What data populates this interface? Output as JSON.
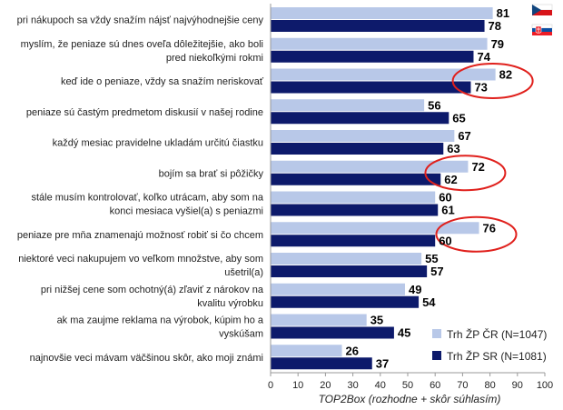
{
  "chart_data": {
    "type": "bar",
    "orientation": "horizontal",
    "categories": [
      [
        "pri nákupoch sa vždy snažím nájsť najvýhodnejšie ceny"
      ],
      [
        "myslím, že peniaze sú dnes oveľa dôležitejšie, ako boli",
        "pred niekoľkými rokmi"
      ],
      [
        "keď ide o peniaze, vždy sa snažím neriskovať"
      ],
      [
        "peniaze sú častým predmetom diskusií v našej rodine"
      ],
      [
        "každý mesiac pravidelne ukladám určitú čiastku"
      ],
      [
        "bojím sa brať si pôžičky"
      ],
      [
        "stále musím kontrolovať, koľko utrácam, aby som na",
        "konci mesiaca vyšiel(a) s peniazmi"
      ],
      [
        "peniaze pre mňa znamenajú možnosť robiť si čo chcem"
      ],
      [
        "niektoré veci nakupujem vo veľkom množstve, aby som",
        "ušetril(a)"
      ],
      [
        "pri nižšej cene som ochotný(á) zľaviť z nárokov na",
        "kvalitu výrobku"
      ],
      [
        "ak ma zaujme reklama na výrobok, kúpim ho a",
        "vyskúšam"
      ],
      [
        "najnovšie veci mávam väčšinou skôr, ako moji známi"
      ]
    ],
    "series": [
      {
        "name": "Trh ŽP ČR (N=1047)",
        "color": "#b8c8e8",
        "values": [
          81,
          79,
          82,
          56,
          67,
          72,
          60,
          76,
          55,
          49,
          35,
          26
        ]
      },
      {
        "name": "Trh ŽP SR (N=1081)",
        "color": "#0d1a6b",
        "values": [
          78,
          74,
          73,
          65,
          63,
          62,
          61,
          60,
          57,
          54,
          45,
          37
        ]
      }
    ],
    "xlabel": "TOP2Box (rozhodne + skôr súhlasím)",
    "xlim": [
      0,
      100
    ],
    "xticks": [
      0,
      10,
      20,
      30,
      40,
      50,
      60,
      70,
      80,
      90,
      100
    ],
    "highlighted_categories": [
      2,
      5,
      7
    ],
    "highlight_color": "#e0201c",
    "legend_position": "bottom-right",
    "grid": false,
    "flag_icons": [
      "czech-flag-icon",
      "slovak-flag-icon"
    ]
  }
}
